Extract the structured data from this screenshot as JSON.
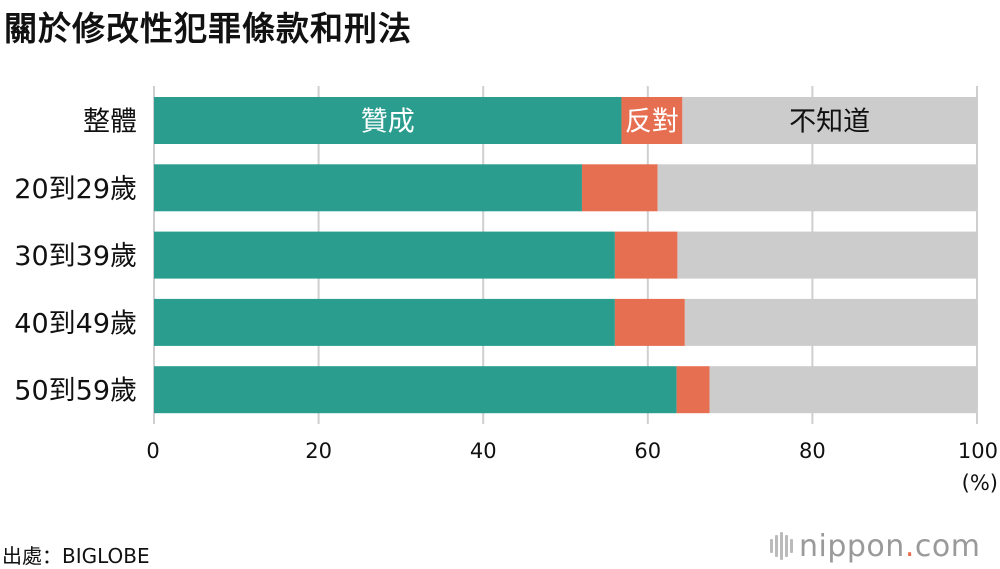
{
  "title": "關於修改性犯罪條款和刑法",
  "chart_data": {
    "type": "bar",
    "orientation": "horizontal",
    "stacked": true,
    "categories": [
      "整體",
      "20到29歲",
      "30到39歲",
      "40到49歲",
      "50到59歲"
    ],
    "series": [
      {
        "name": "贊成",
        "color": "#2a9d8f",
        "values": [
          56.8,
          52.0,
          56.0,
          56.0,
          63.5
        ]
      },
      {
        "name": "反對",
        "color": "#e76f51",
        "values": [
          7.4,
          9.2,
          7.6,
          8.5,
          4.0
        ]
      },
      {
        "name": "不知道",
        "color": "#cccccc",
        "values": [
          35.8,
          38.8,
          36.4,
          35.5,
          32.5
        ]
      }
    ],
    "xlim": [
      0,
      100
    ],
    "xticks": [
      "0",
      "20",
      "40",
      "60",
      "80",
      "100"
    ],
    "xunit": "(%)",
    "grid": true,
    "legend": "in-bar labels on first row"
  },
  "source": "出處：BIGLOBE",
  "logo": {
    "name": "nippon",
    "dot": ".",
    "suffix": "com"
  }
}
